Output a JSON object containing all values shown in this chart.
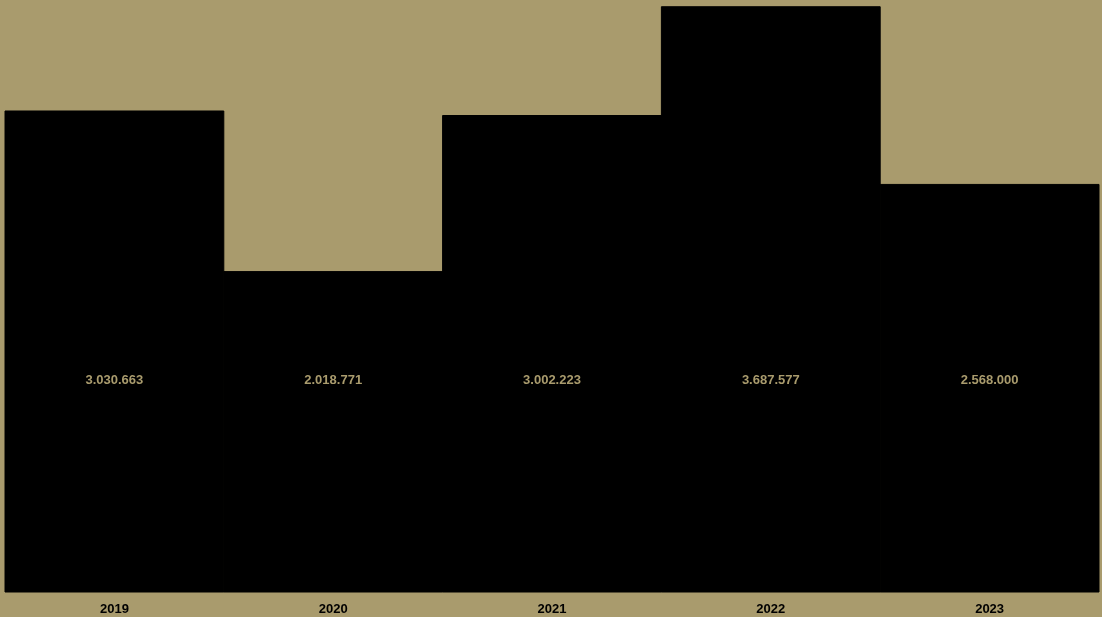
{
  "chart_data": {
    "type": "bar",
    "categories": [
      "2019",
      "2020",
      "2021",
      "2022",
      "2023"
    ],
    "values": [
      3030663,
      2018771,
      3002223,
      3687577,
      2568000
    ],
    "value_labels": [
      "3.030.663",
      "2.018.771",
      "3.002.223",
      "3.687.577",
      "2.568.000"
    ],
    "color": "#000000",
    "ylim": [
      0,
      3730000
    ],
    "tick_labels": "x",
    "grid": false
  }
}
